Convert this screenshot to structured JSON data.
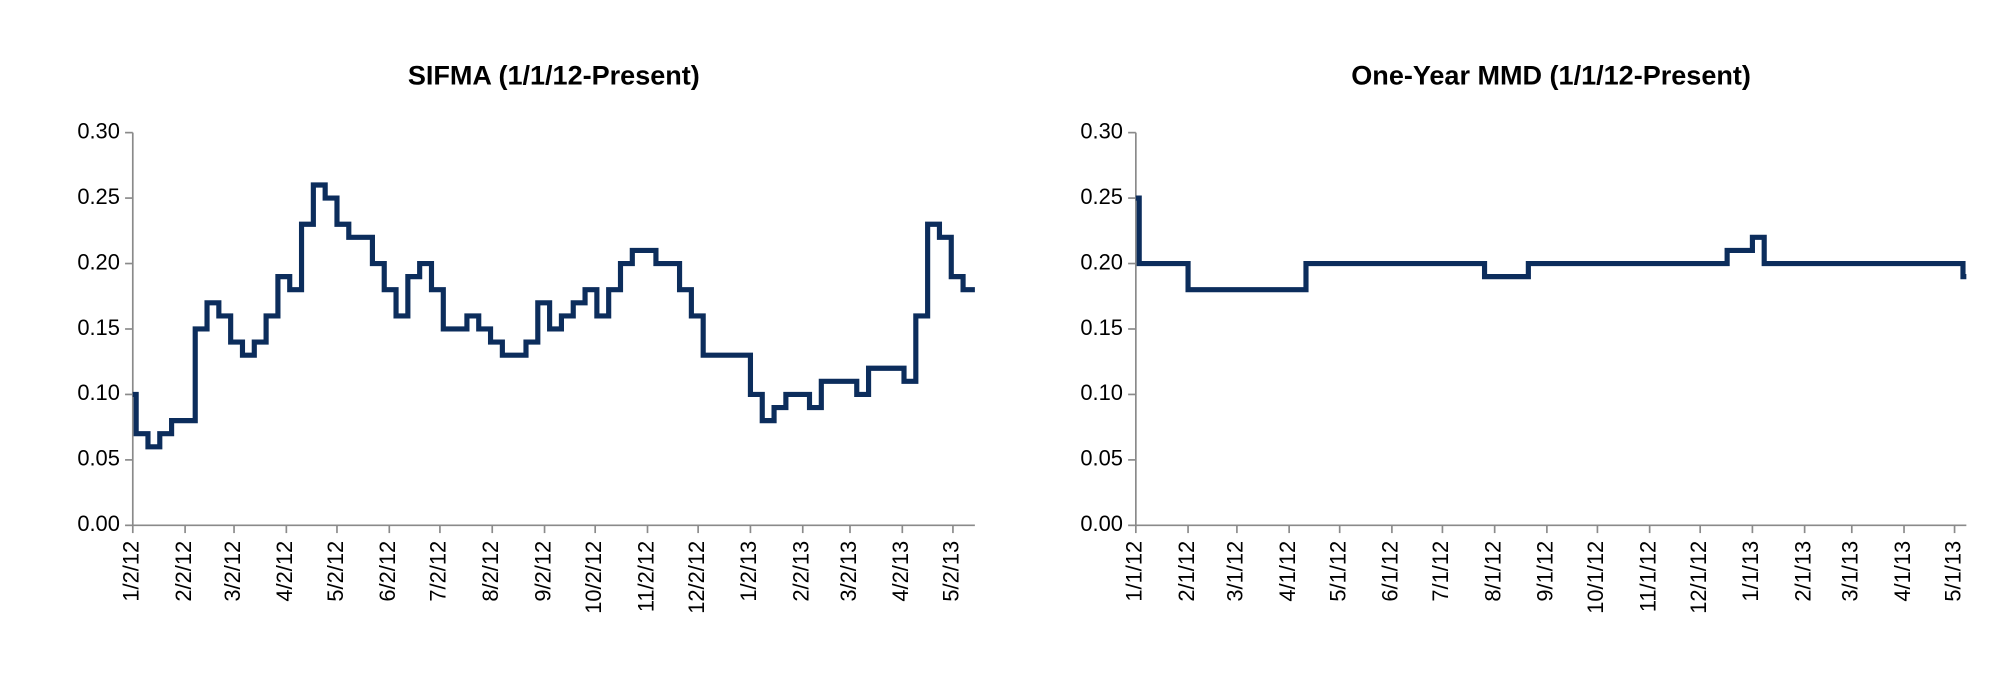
{
  "chart_data": [
    {
      "type": "line",
      "step": "after",
      "title": "SIFMA (1/1/12-Present)",
      "color": "#0c2d5c",
      "x": [
        "1/2/12",
        "1/4/12",
        "1/11/12",
        "1/18/12",
        "1/25/12",
        "2/8/12",
        "2/15/12",
        "2/22/12",
        "2/29/12",
        "3/7/12",
        "3/14/12",
        "3/21/12",
        "3/28/12",
        "4/4/12",
        "4/11/12",
        "4/18/12",
        "4/25/12",
        "5/2/12",
        "5/9/12",
        "5/23/12",
        "5/30/12",
        "6/6/12",
        "6/13/12",
        "6/20/12",
        "6/27/12",
        "7/4/12",
        "7/18/12",
        "7/25/12",
        "8/1/12",
        "8/8/12",
        "8/22/12",
        "8/29/12",
        "9/5/12",
        "9/12/12",
        "9/19/12",
        "9/26/12",
        "10/3/12",
        "10/10/12",
        "10/17/12",
        "10/24/12",
        "11/7/12",
        "11/21/12",
        "11/28/12",
        "12/5/12",
        "1/2/13",
        "1/9/13",
        "1/16/13",
        "1/23/13",
        "2/6/13",
        "2/13/13",
        "3/6/13",
        "3/13/13",
        "4/3/13",
        "4/10/13",
        "4/17/13",
        "4/24/13",
        "5/1/13",
        "5/8/13",
        "5/15/13"
      ],
      "values": [
        0.1,
        0.07,
        0.06,
        0.07,
        0.08,
        0.15,
        0.17,
        0.16,
        0.14,
        0.13,
        0.14,
        0.16,
        0.19,
        0.18,
        0.23,
        0.26,
        0.25,
        0.23,
        0.22,
        0.2,
        0.18,
        0.16,
        0.19,
        0.2,
        0.18,
        0.15,
        0.16,
        0.15,
        0.14,
        0.13,
        0.14,
        0.17,
        0.15,
        0.16,
        0.17,
        0.18,
        0.16,
        0.18,
        0.2,
        0.21,
        0.2,
        0.18,
        0.16,
        0.13,
        0.1,
        0.08,
        0.09,
        0.1,
        0.09,
        0.11,
        0.1,
        0.12,
        0.11,
        0.16,
        0.23,
        0.22,
        0.19,
        0.18,
        0.18
      ],
      "xlim": [
        "1/2/12",
        "5/15/13"
      ],
      "xticks": [
        "1/2/12",
        "2/2/12",
        "3/2/12",
        "4/2/12",
        "5/2/12",
        "6/2/12",
        "7/2/12",
        "8/2/12",
        "9/2/12",
        "10/2/12",
        "11/2/12",
        "12/2/12",
        "1/2/13",
        "2/2/13",
        "3/2/13",
        "4/2/13",
        "5/2/13"
      ],
      "ylim": [
        0,
        0.3
      ],
      "yticks": [
        {
          "value": 0,
          "label": "0.00"
        },
        {
          "value": 0.05,
          "label": "0.05"
        },
        {
          "value": 0.1,
          "label": "0.10"
        },
        {
          "value": 0.15,
          "label": "0.15"
        },
        {
          "value": 0.2,
          "label": "0.20"
        },
        {
          "value": 0.25,
          "label": "0.25"
        },
        {
          "value": 0.3,
          "label": "0.30"
        }
      ]
    },
    {
      "type": "line",
      "step": "after",
      "title": "One-Year MMD (1/1/12-Present)",
      "color": "#0c2d5c",
      "x": [
        "1/1/12",
        "1/3/12",
        "2/1/12",
        "4/11/12",
        "7/26/12",
        "8/21/12",
        "12/17/12",
        "1/1/13",
        "1/8/13",
        "5/6/13",
        "5/8/13"
      ],
      "values": [
        0.25,
        0.2,
        0.18,
        0.2,
        0.19,
        0.2,
        0.21,
        0.22,
        0.2,
        0.19,
        0.19
      ],
      "xlim": [
        "1/1/12",
        "5/8/13"
      ],
      "xticks": [
        "1/1/12",
        "2/1/12",
        "3/1/12",
        "4/1/12",
        "5/1/12",
        "6/1/12",
        "7/1/12",
        "8/1/12",
        "9/1/12",
        "10/1/12",
        "11/1/12",
        "12/1/12",
        "1/1/13",
        "2/1/13",
        "3/1/13",
        "4/1/13",
        "5/1/13"
      ],
      "ylim": [
        0,
        0.3
      ],
      "yticks": [
        {
          "value": 0,
          "label": "0.00"
        },
        {
          "value": 0.05,
          "label": "0.05"
        },
        {
          "value": 0.1,
          "label": "0.10"
        },
        {
          "value": 0.15,
          "label": "0.15"
        },
        {
          "value": 0.2,
          "label": "0.20"
        },
        {
          "value": 0.25,
          "label": "0.25"
        },
        {
          "value": 0.3,
          "label": "0.30"
        }
      ]
    }
  ]
}
